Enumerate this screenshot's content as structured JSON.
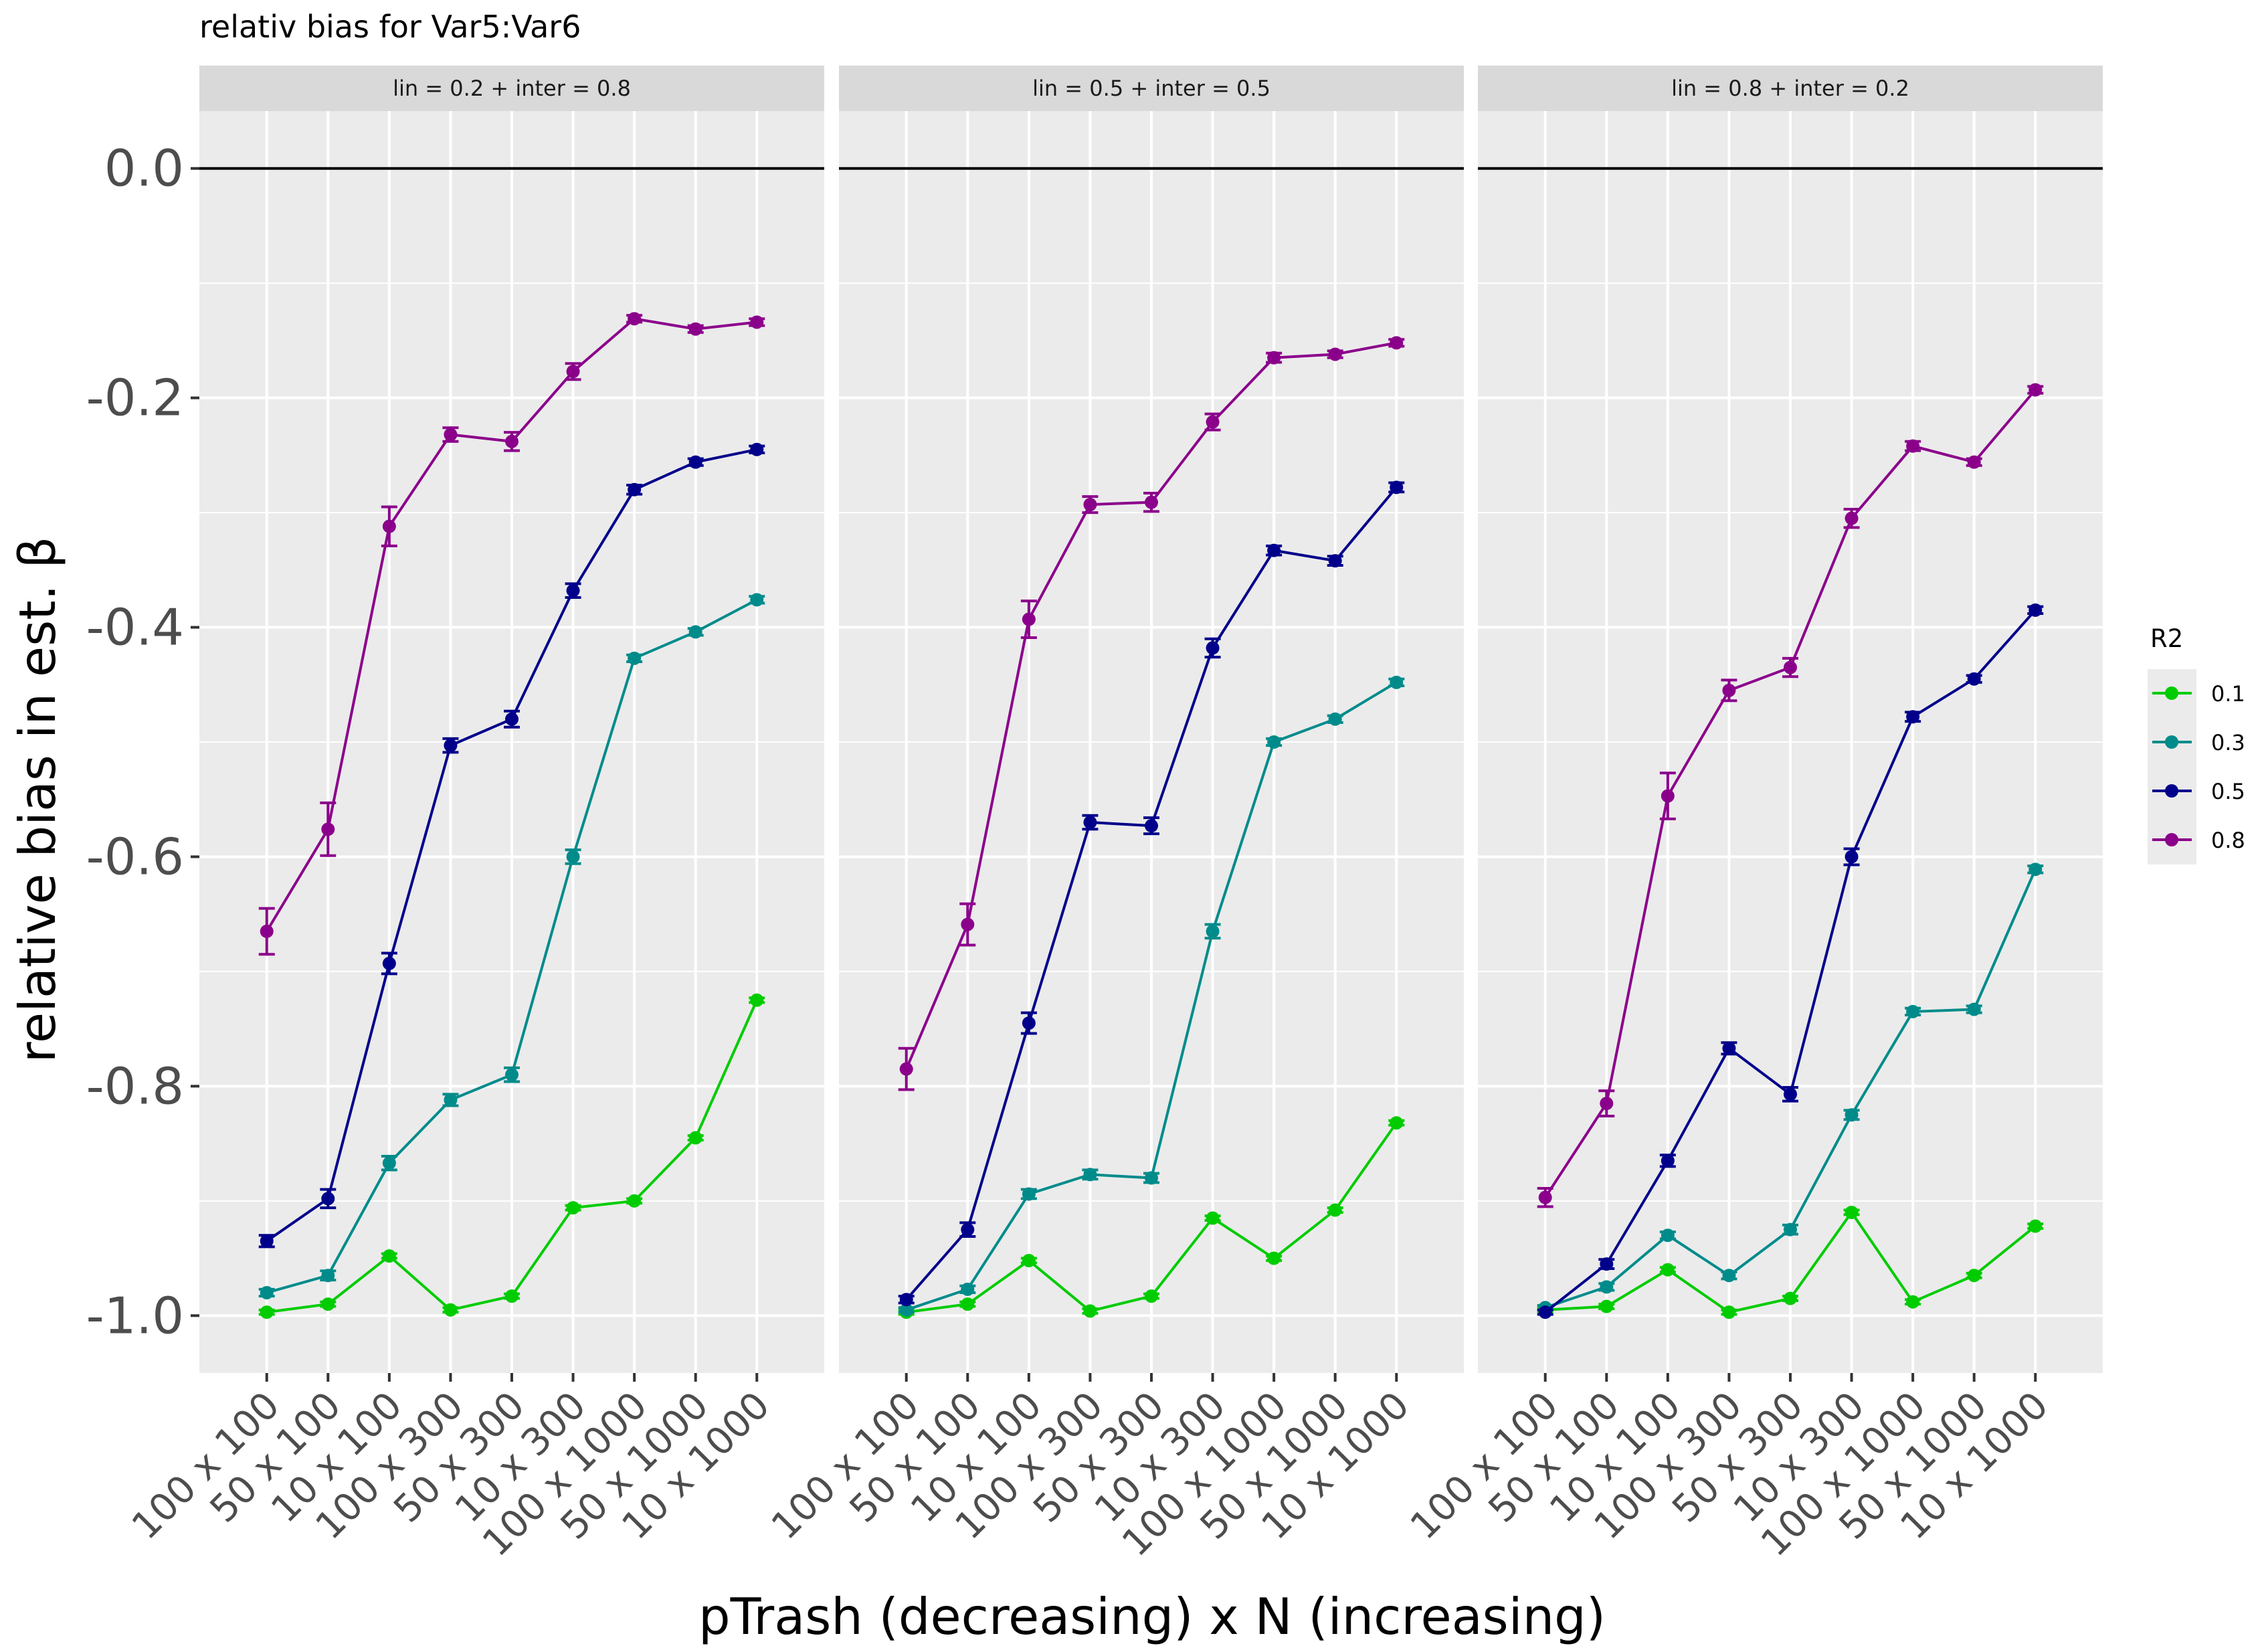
{
  "chart_data": {
    "type": "line",
    "title": "relativ bias for Var5:Var6",
    "xlabel": "pTrash (decreasing) x N (increasing)",
    "ylabel": "relative bias in est. β",
    "ylim": [
      -1.05,
      0.05
    ],
    "yticks": [
      0.0,
      -0.2,
      -0.4,
      -0.6,
      -0.8,
      -1.0
    ],
    "ytick_labels": [
      "0.0",
      "-0.2",
      "-0.4",
      "-0.6",
      "-0.8",
      "-1.0"
    ],
    "reference_line": 0.0,
    "categories": [
      "100 x 100",
      "50 x 100",
      "10 x 100",
      "100 x 300",
      "50 x 300",
      "10 x 300",
      "100 x 1000",
      "50 x 1000",
      "10 x 1000"
    ],
    "legend": {
      "title": "R2",
      "position": "right"
    },
    "series_styles": [
      {
        "name": "0.1",
        "color": "#00cc00"
      },
      {
        "name": "0.3",
        "color": "#008b8b"
      },
      {
        "name": "0.5",
        "color": "#00008b"
      },
      {
        "name": "0.8",
        "color": "#8b008b"
      }
    ],
    "panels": [
      {
        "label": "lin = 0.2 + inter = 0.8",
        "series": [
          {
            "name": "0.1",
            "values": [
              -0.997,
              -0.99,
              -0.948,
              -0.995,
              -0.983,
              -0.906,
              -0.9,
              -0.845,
              -0.725
            ],
            "errors": [
              0.002,
              0.002,
              0.002,
              0.002,
              0.002,
              0.002,
              0.002,
              0.002,
              0.002
            ]
          },
          {
            "name": "0.3",
            "values": [
              -0.98,
              -0.965,
              -0.867,
              -0.812,
              -0.79,
              -0.6,
              -0.427,
              -0.404,
              -0.376
            ],
            "errors": [
              0.003,
              0.004,
              0.006,
              0.005,
              0.006,
              0.006,
              0.003,
              0.003,
              0.003
            ]
          },
          {
            "name": "0.5",
            "values": [
              -0.935,
              -0.898,
              -0.693,
              -0.503,
              -0.48,
              -0.368,
              -0.28,
              -0.256,
              -0.245
            ],
            "errors": [
              0.005,
              0.008,
              0.009,
              0.006,
              0.007,
              0.006,
              0.004,
              0.003,
              0.003
            ]
          },
          {
            "name": "0.8",
            "values": [
              -0.665,
              -0.576,
              -0.312,
              -0.232,
              -0.238,
              -0.177,
              -0.131,
              -0.14,
              -0.134
            ],
            "errors": [
              0.02,
              0.023,
              0.017,
              0.006,
              0.008,
              0.007,
              0.003,
              0.003,
              0.003
            ]
          }
        ]
      },
      {
        "label": "lin = 0.5 + inter = 0.5",
        "series": [
          {
            "name": "0.1",
            "values": [
              -0.997,
              -0.99,
              -0.952,
              -0.996,
              -0.983,
              -0.915,
              -0.95,
              -0.908,
              -0.832
            ],
            "errors": [
              0.002,
              0.002,
              0.002,
              0.002,
              0.002,
              0.002,
              0.002,
              0.002,
              0.002
            ]
          },
          {
            "name": "0.3",
            "values": [
              -0.995,
              -0.977,
              -0.894,
              -0.877,
              -0.88,
              -0.665,
              -0.5,
              -0.48,
              -0.448
            ],
            "errors": [
              0.002,
              0.003,
              0.004,
              0.004,
              0.004,
              0.006,
              0.003,
              0.003,
              0.003
            ]
          },
          {
            "name": "0.5",
            "values": [
              -0.986,
              -0.925,
              -0.745,
              -0.57,
              -0.573,
              -0.418,
              -0.333,
              -0.342,
              -0.278
            ],
            "errors": [
              0.003,
              0.006,
              0.009,
              0.006,
              0.007,
              0.008,
              0.004,
              0.004,
              0.004
            ]
          },
          {
            "name": "0.8",
            "values": [
              -0.785,
              -0.659,
              -0.393,
              -0.293,
              -0.291,
              -0.221,
              -0.165,
              -0.162,
              -0.152
            ],
            "errors": [
              0.018,
              0.018,
              0.016,
              0.007,
              0.008,
              0.007,
              0.004,
              0.003,
              0.003
            ]
          }
        ]
      },
      {
        "label": "lin = 0.8 + inter = 0.2",
        "series": [
          {
            "name": "0.1",
            "values": [
              -0.995,
              -0.992,
              -0.96,
              -0.997,
              -0.985,
              -0.91,
              -0.988,
              -0.965,
              -0.922
            ],
            "errors": [
              0.002,
              0.002,
              0.002,
              0.002,
              0.002,
              0.002,
              0.002,
              0.002,
              0.002
            ]
          },
          {
            "name": "0.3",
            "values": [
              -0.993,
              -0.975,
              -0.93,
              -0.965,
              -0.925,
              -0.825,
              -0.735,
              -0.733,
              -0.611
            ],
            "errors": [
              0.002,
              0.003,
              0.003,
              0.003,
              0.004,
              0.004,
              0.003,
              0.003,
              0.003
            ]
          },
          {
            "name": "0.5",
            "values": [
              -0.997,
              -0.955,
              -0.865,
              -0.767,
              -0.807,
              -0.6,
              -0.478,
              -0.445,
              -0.385
            ],
            "errors": [
              0.002,
              0.004,
              0.005,
              0.005,
              0.006,
              0.007,
              0.004,
              0.003,
              0.003
            ]
          },
          {
            "name": "0.8",
            "values": [
              -0.897,
              -0.815,
              -0.547,
              -0.455,
              -0.435,
              -0.305,
              -0.242,
              -0.256,
              -0.193
            ],
            "errors": [
              0.008,
              0.011,
              0.02,
              0.009,
              0.008,
              0.008,
              0.004,
              0.003,
              0.003
            ]
          }
        ]
      }
    ]
  }
}
